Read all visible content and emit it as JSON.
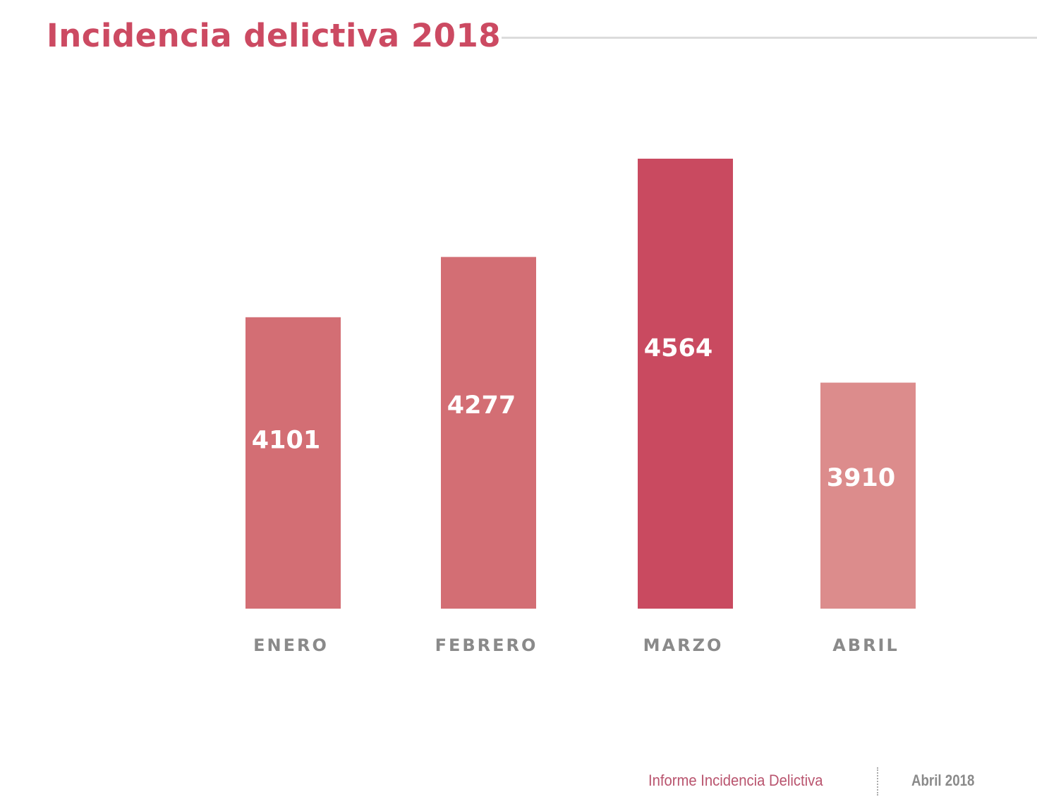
{
  "chart_data": {
    "type": "bar",
    "title": "Incidencia delictiva 2018",
    "categories": [
      "ENERO",
      "FEBRERO",
      "MARZO",
      "ABRIL"
    ],
    "values": [
      4101,
      4277,
      4564,
      3910
    ],
    "colors": [
      "#d36e74",
      "#d36e74",
      "#c94a60",
      "#dc8c8c"
    ],
    "xlabel": "",
    "ylabel": "",
    "grid": false,
    "data_labels": true
  },
  "footer": {
    "report_name": "Informe Incidencia Delictiva",
    "date": "Abril 2018"
  }
}
